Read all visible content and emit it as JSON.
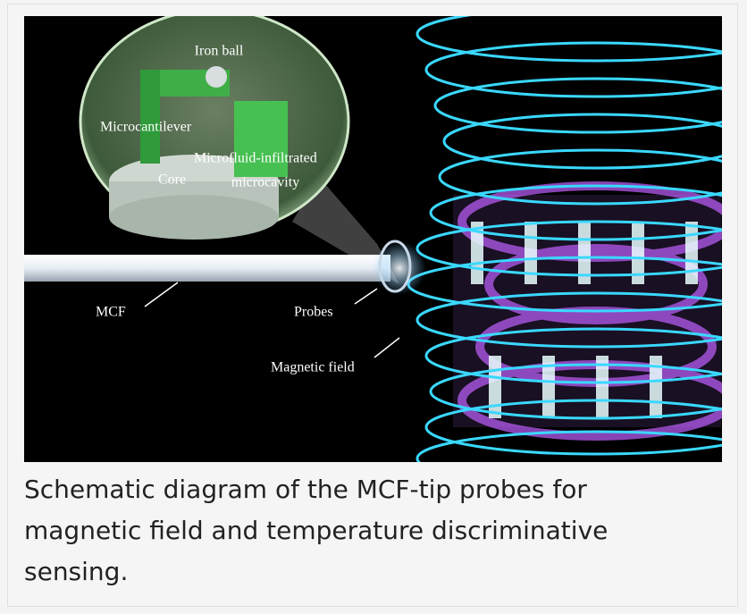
{
  "figure": {
    "labels": [
      "Iron ball",
      "Microcantilever",
      "Microfluid-infiltrated",
      "microcavity",
      "Core",
      "MCF",
      "Probes",
      "Magnetic field"
    ]
  },
  "caption": "Schematic diagram of the MCF-tip probes for magnetic field and temperature discriminative sensing."
}
